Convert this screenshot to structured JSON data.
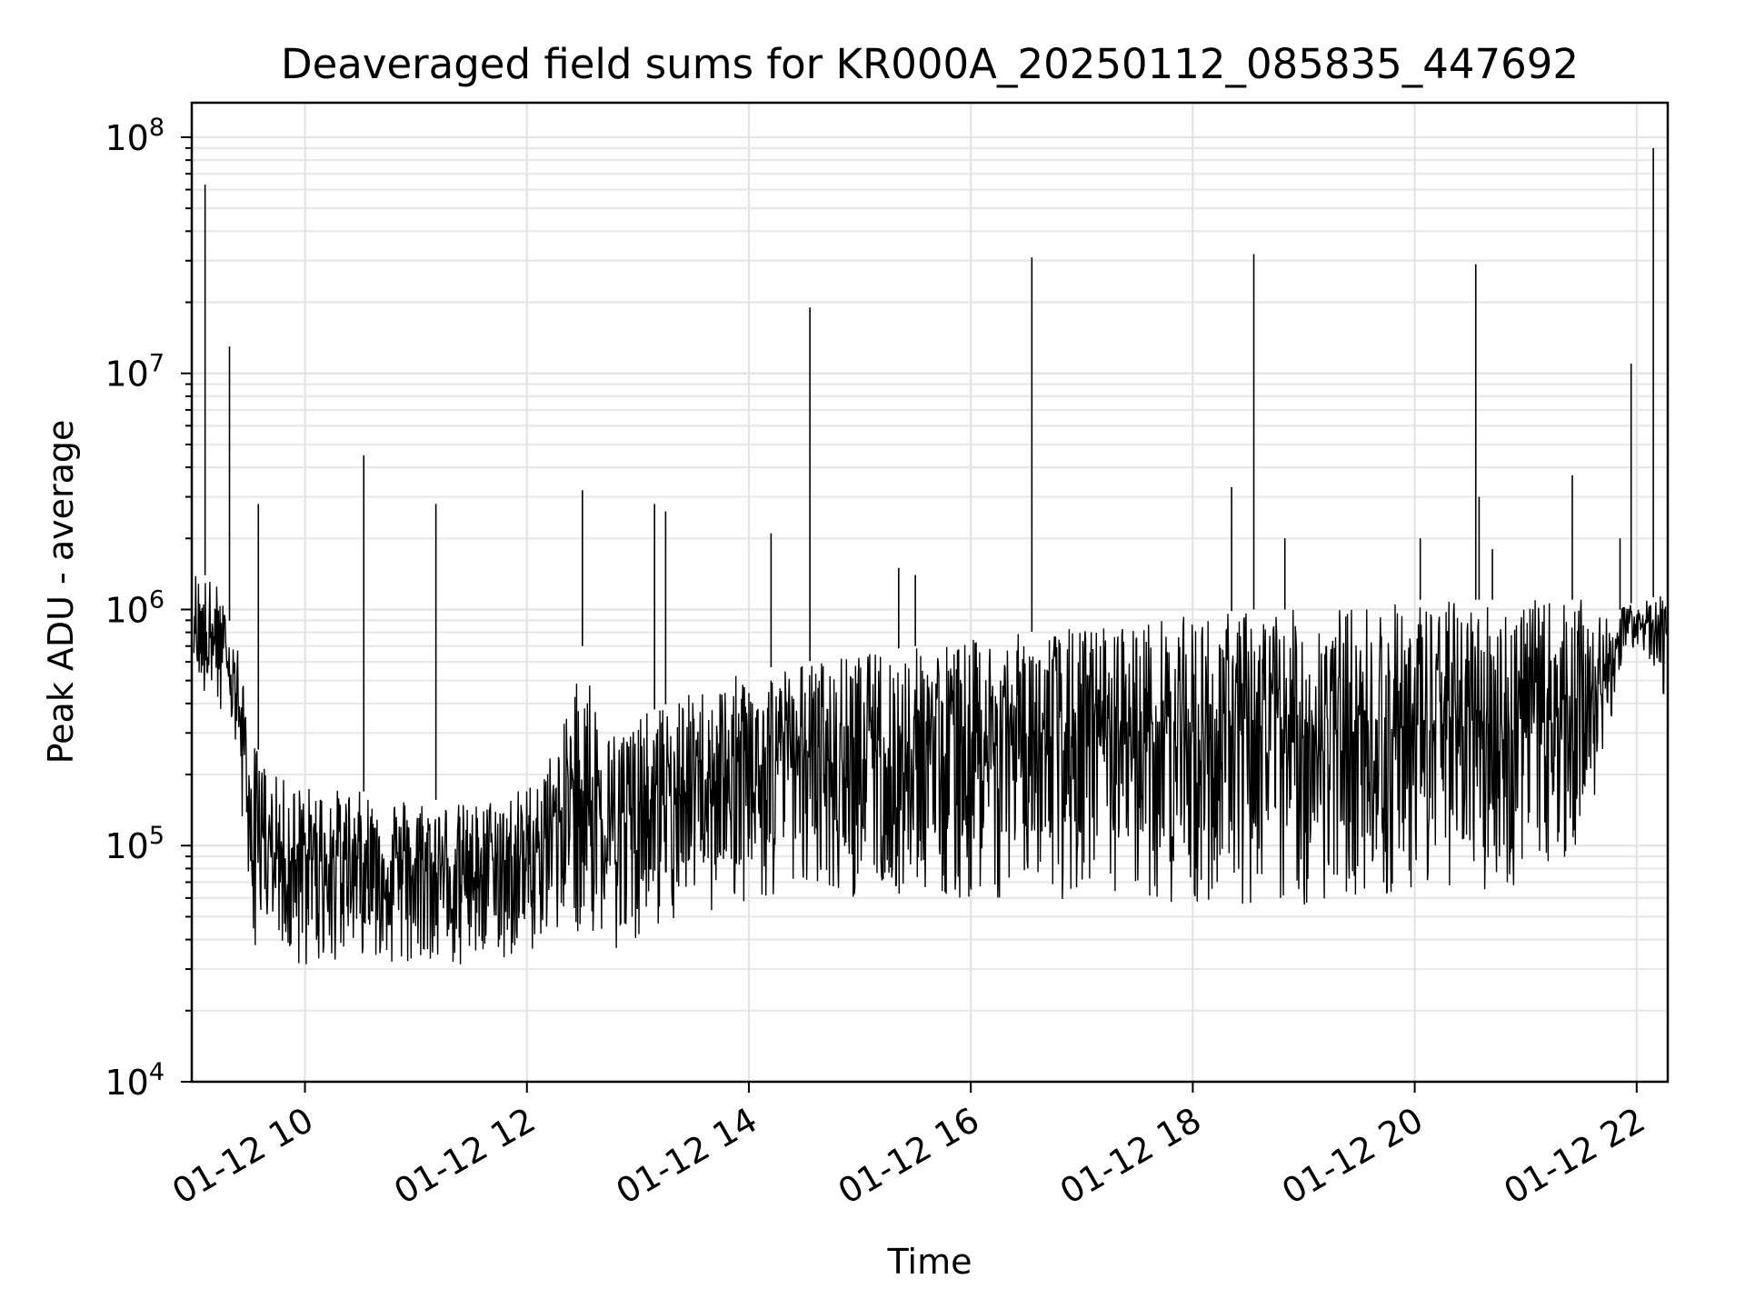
{
  "chart_data": {
    "type": "line",
    "title": "Deaveraged field sums for KR000A_20250112_085835_447692",
    "xlabel": "Time",
    "ylabel": "Peak ADU - average",
    "yscale": "log",
    "ylim": [
      10000,
      140000000
    ],
    "xlim_hours": [
      8.98,
      22.28
    ],
    "grid": true,
    "xticks": [
      {
        "value": 10,
        "label": "01-12 10"
      },
      {
        "value": 12,
        "label": "01-12 12"
      },
      {
        "value": 14,
        "label": "01-12 14"
      },
      {
        "value": 16,
        "label": "01-12 16"
      },
      {
        "value": 18,
        "label": "01-12 18"
      },
      {
        "value": 20,
        "label": "01-12 20"
      },
      {
        "value": 22,
        "label": "01-12 22"
      }
    ],
    "yticks": [
      {
        "value": 10000,
        "base": "10",
        "exp": "4"
      },
      {
        "value": 100000,
        "base": "10",
        "exp": "5"
      },
      {
        "value": 1000000,
        "base": "10",
        "exp": "6"
      },
      {
        "value": 10000000,
        "base": "10",
        "exp": "7"
      },
      {
        "value": 100000000,
        "base": "10",
        "exp": "8"
      }
    ],
    "series": [
      {
        "name": "deaveraged field sum",
        "envelope": {
          "x": [
            9.0,
            9.2,
            9.4,
            9.5,
            9.7,
            10.0,
            10.5,
            11.0,
            11.5,
            12.0,
            12.3,
            12.5,
            12.7,
            13.0,
            13.5,
            14.0,
            14.5,
            15.0,
            15.5,
            16.0,
            16.5,
            17.0,
            17.5,
            18.0,
            18.5,
            19.0,
            19.5,
            20.0,
            20.5,
            21.0,
            21.5,
            21.75,
            21.9,
            22.1,
            22.28
          ],
          "upper": [
            1500000,
            1300000,
            700000,
            300000,
            200000,
            180000,
            170000,
            160000,
            150000,
            180000,
            280000,
            700000,
            300000,
            350000,
            450000,
            550000,
            600000,
            650000,
            700000,
            750000,
            800000,
            850000,
            900000,
            950000,
            1000000,
            1000000,
            1050000,
            1100000,
            1100000,
            1100000,
            1100000,
            900000,
            1050000,
            1100000,
            1200000
          ],
          "lower": [
            400000,
            350000,
            200000,
            40000,
            30000,
            30000,
            35000,
            30000,
            30000,
            35000,
            45000,
            40000,
            35000,
            40000,
            50000,
            55000,
            65000,
            60000,
            60000,
            60000,
            60000,
            55000,
            55000,
            55000,
            55000,
            55000,
            60000,
            60000,
            65000,
            65000,
            90000,
            300000,
            700000,
            600000,
            400000
          ]
        },
        "spikes": [
          {
            "x": 9.1,
            "y": 63000000
          },
          {
            "x": 9.32,
            "y": 13000000
          },
          {
            "x": 9.58,
            "y": 2800000
          },
          {
            "x": 10.53,
            "y": 4500000
          },
          {
            "x": 11.18,
            "y": 2800000
          },
          {
            "x": 12.5,
            "y": 3200000
          },
          {
            "x": 13.15,
            "y": 2800000
          },
          {
            "x": 13.25,
            "y": 2600000
          },
          {
            "x": 14.2,
            "y": 2100000
          },
          {
            "x": 14.55,
            "y": 19000000
          },
          {
            "x": 15.35,
            "y": 1500000
          },
          {
            "x": 15.5,
            "y": 1400000
          },
          {
            "x": 16.55,
            "y": 31000000
          },
          {
            "x": 18.35,
            "y": 3300000
          },
          {
            "x": 18.55,
            "y": 32000000
          },
          {
            "x": 18.83,
            "y": 2000000
          },
          {
            "x": 20.05,
            "y": 2000000
          },
          {
            "x": 20.55,
            "y": 29000000
          },
          {
            "x": 20.58,
            "y": 3000000
          },
          {
            "x": 20.7,
            "y": 1800000
          },
          {
            "x": 21.42,
            "y": 3700000
          },
          {
            "x": 21.85,
            "y": 2000000
          },
          {
            "x": 21.95,
            "y": 11000000
          },
          {
            "x": 22.15,
            "y": 90000000
          }
        ]
      }
    ]
  }
}
